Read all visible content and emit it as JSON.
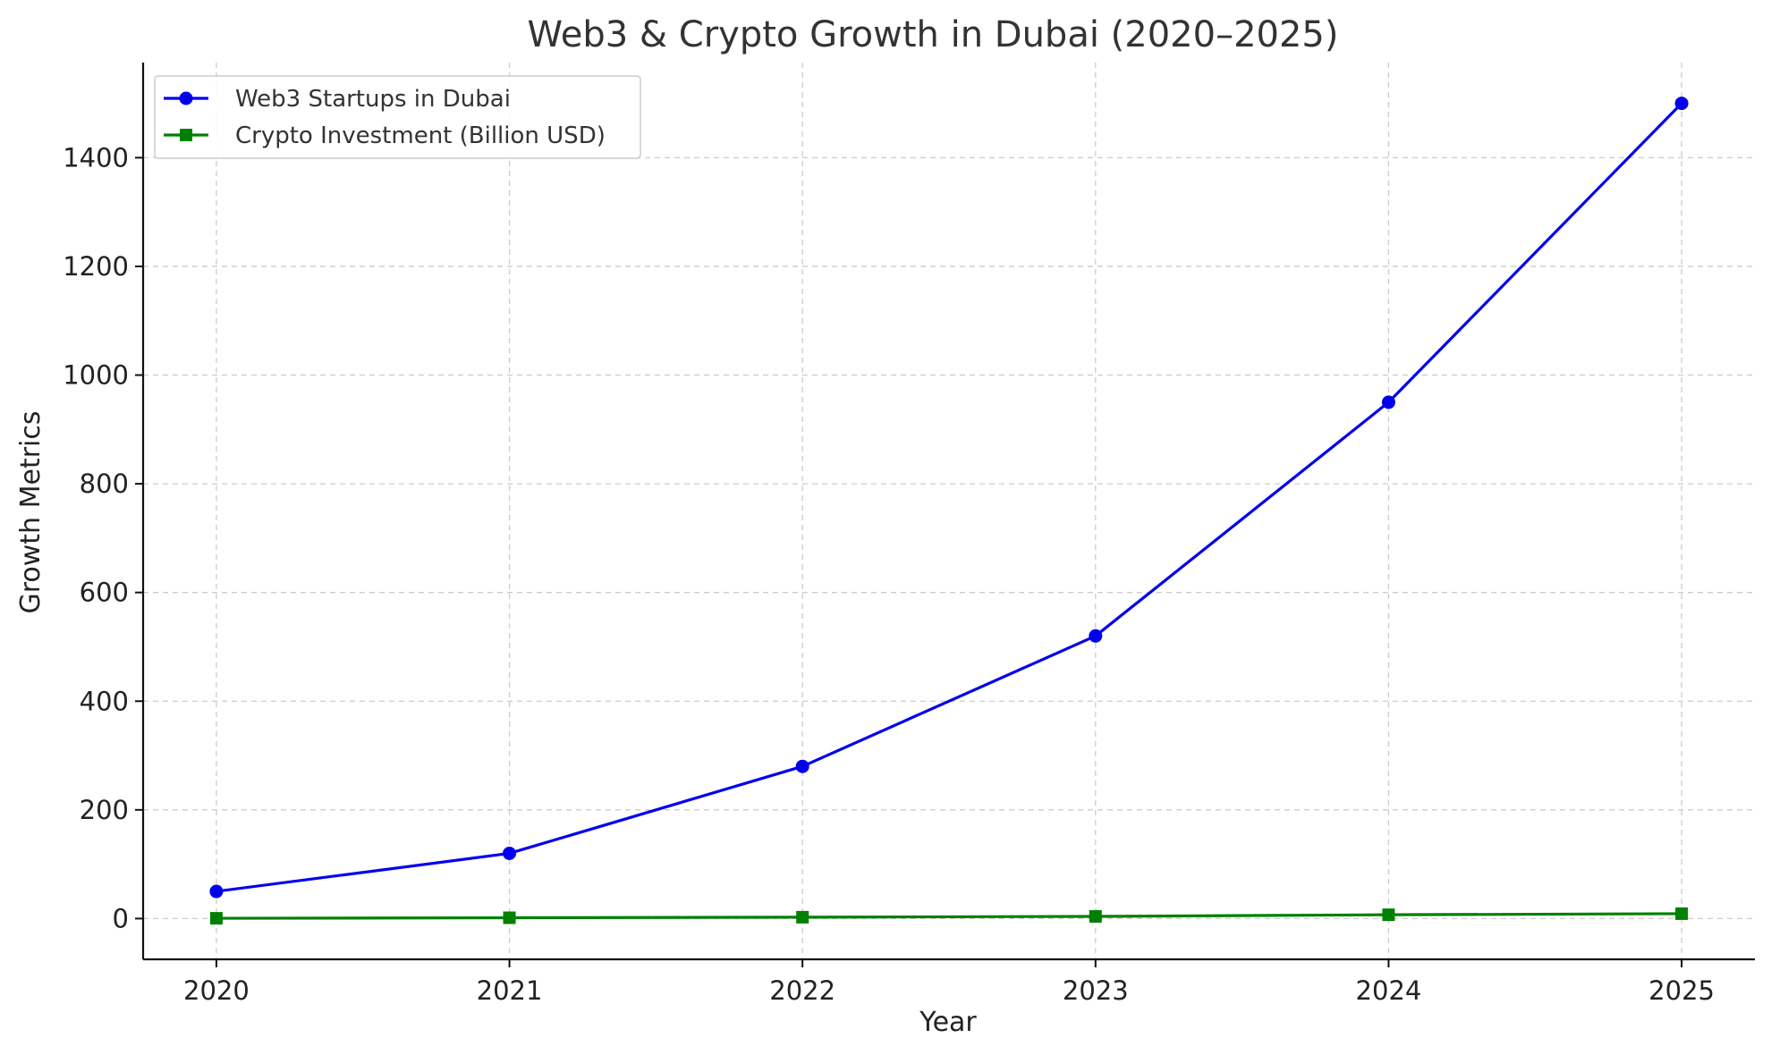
{
  "chart_data": {
    "type": "line",
    "title": "Web3 & Crypto Growth in Dubai (2020–2025)",
    "xlabel": "Year",
    "ylabel": "Growth Metrics",
    "x": [
      "2020",
      "2021",
      "2022",
      "2023",
      "2024",
      "2025"
    ],
    "xlim": [
      2019.75,
      2025.25
    ],
    "ylim": [
      -75,
      1575
    ],
    "yticks": [
      0,
      200,
      400,
      600,
      800,
      1000,
      1200,
      1400
    ],
    "grid": true,
    "legend_position": "top-left",
    "series": [
      {
        "name": "Web3 Startups in Dubai",
        "values": [
          50,
          120,
          280,
          520,
          950,
          1500
        ],
        "color": "#0000ee",
        "marker": "circle"
      },
      {
        "name": "Crypto Investment (Billion USD)",
        "values": [
          0.5,
          1.5,
          2.5,
          4,
          7,
          9
        ],
        "color": "#008000",
        "marker": "square"
      }
    ]
  }
}
